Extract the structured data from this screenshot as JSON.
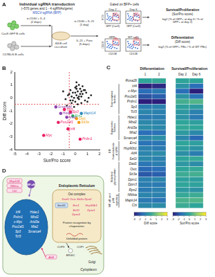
{
  "panel_labels": [
    "A",
    "B",
    "C",
    "D"
  ],
  "A": {
    "title": "Individual sgRNA transduction",
    "subtitle": "(~570 genes and 1 - 4 sgRNAs/gene)",
    "vector": "MSCV-sgRNA (BFP)",
    "cells": [
      "Cas9-GFP B cells",
      "C57BL/6 B cells"
    ],
    "steps": [
      "α-CD40 + IL-4 (2 days)",
      "40LB cell co-culture",
      "α-CD40 + IL-21 (1 day)",
      "IL-21 + Puro (5 days)"
    ],
    "gate": "Gated on BFP+ cells",
    "flow": {
      "top": {
        "panels": [
          "Day 2",
          "Day 6"
        ],
        "gate": "GFP+",
        "xlabel": "GFP (Cas9)",
        "ylabel": "FCS"
      },
      "bottom": {
        "panels": [
          "GFP+",
          "WT cells"
        ],
        "gate": "PBs",
        "xlabel": "CD138",
        "ylabel": "CD19"
      }
    },
    "scores": [
      {
        "name": "Survival/Proliferation",
        "short": "(Sur/Pro score)",
        "formula": "log2 (% of GFP+ at day 6 / % of GFP+ at day 2)"
      },
      {
        "name": "Differentiation",
        "short": "(Diff score)",
        "formula": "log2 (% of GFP+ PBs / % of WT PBs)"
      }
    ]
  },
  "chart_data": {
    "type": "scatter",
    "xlabel": "Sur/Pro score",
    "ylabel": "Diff score",
    "xlim": [
      -5,
      2
    ],
    "xticks": [
      -5,
      -4,
      -3,
      -2,
      -1,
      0,
      1,
      2
    ],
    "ylim": [
      -4,
      2
    ],
    "yticks": [
      -4,
      -3,
      -2,
      -1,
      0,
      1,
      2
    ],
    "grid": false,
    "reference_lines": [
      {
        "axis": "x",
        "value": -0.5
      },
      {
        "axis": "y",
        "value": -0.5
      }
    ],
    "series": [
      {
        "color": "#222222",
        "marker": "circle",
        "x": [
          0.1,
          -0.2,
          0.3,
          0.5,
          -0.4,
          0.0,
          0.2,
          -0.1,
          0.6,
          0.8,
          -0.6,
          0.4,
          -0.3,
          0.1,
          0.9,
          1.1,
          -0.8,
          0.2,
          0.0,
          -0.5,
          0.7,
          0.3,
          -0.2,
          0.5,
          1.3,
          -1.0,
          0.1,
          0.4,
          -0.7,
          0.6,
          0.2,
          -0.3,
          0.0,
          0.8,
          -0.1,
          0.3,
          0.5,
          -0.4,
          1.0,
          0.1
        ],
        "y": [
          0.2,
          0.4,
          -0.1,
          0.1,
          0.6,
          -0.3,
          0.5,
          0.0,
          0.3,
          -0.2,
          0.2,
          0.7,
          -0.4,
          0.9,
          0.4,
          0.0,
          -0.1,
          -0.5,
          0.8,
          0.3,
          0.6,
          0.1,
          -0.2,
          -0.4,
          0.2,
          0.5,
          1.2,
          0.3,
          -0.6,
          0.9,
          0.0,
          0.1,
          0.4,
          0.6,
          -0.7,
          1.0,
          0.5,
          -0.2,
          -0.3,
          0.7
        ]
      },
      {
        "marker": "circle",
        "point_labels": [
          "Smarca4",
          "Tcf3",
          "Sp3",
          "Hdac1",
          "Mta2",
          "Pou2af1",
          "Irf4",
          "Myc",
          "Prdm1",
          "Mapk14",
          "Ostc",
          "Stt3a",
          "Ern1"
        ],
        "colors": [
          "#8e44ad",
          "#e91e63",
          "#e91e63",
          "#8e44ad",
          "#8e44ad",
          "#e91e63",
          "#e91e63",
          "#e91e63",
          "#e91e63",
          "#2e86c1",
          "#f39c12",
          "#f39c12",
          "#27ae60"
        ],
        "x": [
          -1.6,
          -0.9,
          -0.4,
          -1.2,
          -0.7,
          -1.4,
          -0.6,
          -2.6,
          0.4,
          0.5,
          0.1,
          0.3,
          -0.2
        ],
        "y": [
          -0.7,
          -0.9,
          -1.1,
          -1.2,
          -1.5,
          -1.9,
          -2.4,
          -2.9,
          -3.2,
          -1.2,
          -1.6,
          -1.9,
          -1.4
        ]
      }
    ]
  },
  "C": {
    "panels": [
      {
        "title": "Differentiation",
        "columns": [
          "1",
          "2"
        ],
        "colorbar": {
          "title": "Diff score",
          "lim": [
            -3,
            3
          ],
          "ticks": [
            -3,
            -2,
            -1,
            0,
            1,
            2,
            3
          ]
        }
      },
      {
        "title": "Survival/Proliferation",
        "columns": [
          "Day 2",
          "Day 6"
        ],
        "colorbar": {
          "title": "Sur/Pro score",
          "lim": [
            -3,
            3
          ],
          "ticks": [
            -3,
            -2,
            -1,
            0,
            1,
            2,
            3
          ]
        }
      }
    ],
    "rows": [
      {
        "gene": "Rosa26",
        "values": [
          [
            0,
            0.1
          ],
          [
            0,
            0
          ]
        ]
      },
      {
        "gene": "Irf4",
        "values": [
          [
            -3,
            -2.8
          ],
          [
            -0.5,
            -1.5
          ]
        ]
      },
      {
        "gene": "c-Myc",
        "values": [
          [
            -1.5,
            -1.2
          ],
          [
            -1.5,
            -3
          ]
        ]
      },
      {
        "gene": "Pou2af1",
        "values": [
          [
            -2,
            -1.8
          ],
          [
            -0.5,
            -1.4
          ]
        ]
      },
      {
        "gene": "Prdm1",
        "values": [
          [
            -3,
            -3
          ],
          [
            0.3,
            0.5
          ]
        ]
      },
      {
        "gene": "Sp3",
        "values": [
          [
            -1.1,
            -1
          ],
          [
            -0.1,
            -0.3
          ]
        ]
      },
      {
        "gene": "Tcf3",
        "values": [
          [
            -0.9,
            -1
          ],
          [
            -0.4,
            -1
          ]
        ]
      },
      {
        "gene": "Hdac1",
        "values": [
          [
            -1.2,
            -1.1
          ],
          [
            -0.5,
            -1.2
          ]
        ]
      },
      {
        "gene": "Mbd2",
        "values": [
          [
            -0.8,
            -0.9
          ],
          [
            0,
            -0.2
          ]
        ]
      },
      {
        "gene": "Arid3a",
        "values": [
          [
            -0.7,
            -0.8
          ],
          [
            0.1,
            0
          ]
        ]
      },
      {
        "gene": "Mta2",
        "values": [
          [
            -1.5,
            -1.4
          ],
          [
            -0.3,
            -0.8
          ]
        ]
      },
      {
        "gene": "Smarca4",
        "values": [
          [
            -0.8,
            -0.6
          ],
          [
            -0.8,
            -1.6
          ]
        ]
      },
      {
        "gene": "Ern1",
        "values": [
          [
            -1.4,
            -1.3
          ],
          [
            0,
            -0.2
          ]
        ]
      },
      {
        "gene": "Hsp90b1",
        "values": [
          [
            -1,
            -1.2
          ],
          [
            -0.2,
            -0.5
          ]
        ]
      },
      {
        "gene": "Atf4",
        "values": [
          [
            -0.9,
            -0.7
          ],
          [
            -0.6,
            -1.1
          ]
        ]
      },
      {
        "gene": "Sel1l",
        "values": [
          [
            -0.8,
            -1
          ],
          [
            0,
            0.1
          ]
        ]
      },
      {
        "gene": "Dad1",
        "values": [
          [
            -1.3,
            -1.1
          ],
          [
            -0.4,
            -0.7
          ]
        ]
      },
      {
        "gene": "Ostc",
        "values": [
          [
            -1.6,
            -1.5
          ],
          [
            0,
            0.1
          ]
        ]
      },
      {
        "gene": "Stt3a",
        "values": [
          [
            -1.9,
            -1.8
          ],
          [
            0.2,
            0.3
          ]
        ]
      },
      {
        "gene": "Dpm1",
        "values": [
          [
            -1,
            -0.9
          ],
          [
            -0.1,
            -0.2
          ]
        ]
      },
      {
        "gene": "Dpm3",
        "values": [
          [
            -1.1,
            -1.2
          ],
          [
            0,
            -0.1
          ]
        ]
      },
      {
        "gene": "Rpn2",
        "values": [
          [
            -1.2,
            -1
          ],
          [
            -0.3,
            -0.5
          ]
        ]
      },
      {
        "gene": "Nfkbia",
        "values": [
          [
            -0.9,
            -1
          ],
          [
            0.1,
            0.2
          ]
        ]
      },
      {
        "gene": "Mapk14",
        "values": [
          [
            -1.2,
            -1.3
          ],
          [
            0.4,
            0.5
          ]
        ]
      },
      {
        "gene": "Cbl",
        "values": [
          [
            -0.8,
            -0.7
          ],
          [
            0.2,
            0
          ]
        ]
      }
    ],
    "groups": [
      {
        "label": "Transcription factors",
        "first": "Irf4",
        "last": "Tcf3"
      },
      {
        "label": "Epigenetic factors",
        "first": "Hdac1",
        "last": "Smarca4"
      },
      {
        "label": "ER homeostasis & UPR",
        "first": "Ern1",
        "last": "Sel1l"
      },
      {
        "label": "N-linked glycosylation",
        "first": "Dad1",
        "last": "Rpn2"
      },
      {
        "label": "NF-κB and p38 signaling",
        "first": "Nfkbia",
        "last": "Cbl"
      }
    ]
  },
  "D": {
    "cytoplasm": "Cytoplasm",
    "er": "Endoplasmic Reticulum",
    "golgi": "Golgi",
    "ergic": "ERGIC",
    "copii": "COPII",
    "copi": "COPI",
    "nfkb": "NF-κB",
    "signaling": [
      "Mapk14",
      "Nfkbia",
      "Cbl"
    ],
    "nucleus_genes": [
      "Irf4",
      "Prdm1",
      "c-Myc",
      "Pou2af1",
      "Sp3",
      "Tcf3",
      "Hdac1",
      "Mbd2",
      "Arid3a",
      "Mta2",
      "Smarca4"
    ],
    "ost": {
      "label": "Ost complex",
      "genes": [
        "Dad1",
        "Ostc",
        "Stt3a",
        "Rpn2"
      ]
    },
    "er_genes": [
      "Ern1",
      "Hsp90b1",
      "Sel1l",
      "Dpm1",
      "Dpm3"
    ],
    "sec61": "Sec61",
    "chaperone": "Protein recognition by chaperones",
    "unfolded": "Unfolded protein",
    "atf4": "Atf4"
  }
}
